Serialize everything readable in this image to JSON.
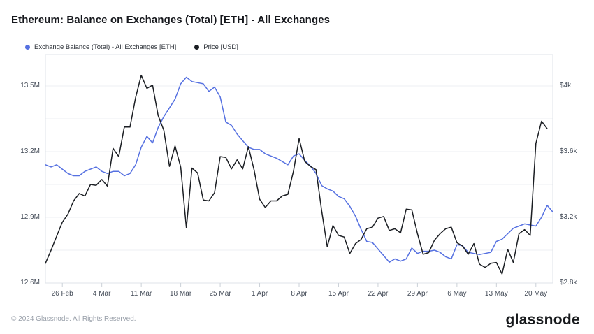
{
  "header": {
    "title": "Ethereum: Balance on Exchanges (Total) [ETH] - All Exchanges"
  },
  "legend": [
    {
      "label": "Exchange Balance (Total) - All Exchanges [ETH]",
      "color": "#5671E1"
    },
    {
      "label": "Price [USD]",
      "color": "#1B1E23"
    }
  ],
  "footer": {
    "copyright": "© 2024 Glassnode. All Rights Reserved.",
    "brand": "glassnode"
  },
  "chart_data": {
    "type": "line",
    "title": "Ethereum: Balance on Exchanges (Total) [ETH] - All Exchanges",
    "grid": true,
    "legend_position": "top-left",
    "x": [
      "23 Feb",
      "24 Feb",
      "25 Feb",
      "26 Feb",
      "27 Feb",
      "28 Feb",
      "29 Feb",
      "1 Mar",
      "2 Mar",
      "3 Mar",
      "4 Mar",
      "5 Mar",
      "6 Mar",
      "7 Mar",
      "8 Mar",
      "9 Mar",
      "10 Mar",
      "11 Mar",
      "12 Mar",
      "13 Mar",
      "14 Mar",
      "15 Mar",
      "16 Mar",
      "17 Mar",
      "18 Mar",
      "19 Mar",
      "20 Mar",
      "21 Mar",
      "22 Mar",
      "23 Mar",
      "24 Mar",
      "25 Mar",
      "26 Mar",
      "27 Mar",
      "28 Mar",
      "29 Mar",
      "30 Mar",
      "31 Mar",
      "1 Apr",
      "2 Apr",
      "3 Apr",
      "4 Apr",
      "5 Apr",
      "6 Apr",
      "7 Apr",
      "8 Apr",
      "9 Apr",
      "10 Apr",
      "11 Apr",
      "12 Apr",
      "13 Apr",
      "14 Apr",
      "15 Apr",
      "16 Apr",
      "17 Apr",
      "18 Apr",
      "19 Apr",
      "20 Apr",
      "21 Apr",
      "22 Apr",
      "23 Apr",
      "24 Apr",
      "25 Apr",
      "26 Apr",
      "27 Apr",
      "28 Apr",
      "29 Apr",
      "30 Apr",
      "1 May",
      "2 May",
      "3 May",
      "4 May",
      "5 May",
      "6 May",
      "7 May",
      "8 May",
      "9 May",
      "10 May",
      "11 May",
      "12 May",
      "13 May",
      "14 May",
      "15 May",
      "16 May",
      "17 May",
      "18 May",
      "19 May",
      "20 May",
      "21 May",
      "22 May",
      "23 May"
    ],
    "series": [
      {
        "name": "Exchange Balance (Total) - All Exchanges [ETH]",
        "axis": "left",
        "unit": "M ETH",
        "color": "#5671E1",
        "values": [
          13.14,
          13.13,
          13.14,
          13.12,
          13.1,
          13.09,
          13.09,
          13.11,
          13.12,
          13.13,
          13.11,
          13.1,
          13.11,
          13.11,
          13.09,
          13.1,
          13.14,
          13.22,
          13.27,
          13.24,
          13.31,
          13.36,
          13.4,
          13.44,
          13.51,
          13.54,
          13.52,
          13.515,
          13.51,
          13.475,
          13.495,
          13.45,
          13.335,
          13.32,
          13.28,
          13.25,
          13.22,
          13.21,
          13.21,
          13.19,
          13.18,
          13.17,
          13.155,
          13.14,
          13.18,
          13.19,
          13.16,
          13.135,
          13.1,
          13.045,
          13.03,
          13.02,
          12.995,
          12.985,
          12.95,
          12.905,
          12.845,
          12.79,
          12.785,
          12.755,
          12.725,
          12.695,
          12.71,
          12.7,
          12.71,
          12.76,
          12.735,
          12.745,
          12.745,
          12.75,
          12.74,
          12.72,
          12.71,
          12.775,
          12.77,
          12.74,
          12.735,
          12.73,
          12.735,
          12.74,
          12.79,
          12.8,
          12.825,
          12.85,
          12.86,
          12.87,
          12.865,
          12.86,
          12.9,
          12.955,
          12.925
        ]
      },
      {
        "name": "Price [USD]",
        "axis": "right",
        "unit": "USD",
        "color": "#1B1E23",
        "values": [
          2920,
          3000,
          3085,
          3170,
          3220,
          3300,
          3345,
          3330,
          3400,
          3395,
          3430,
          3390,
          3620,
          3570,
          3750,
          3750,
          3930,
          4065,
          3985,
          4005,
          3820,
          3730,
          3510,
          3635,
          3505,
          3135,
          3500,
          3470,
          3305,
          3300,
          3350,
          3570,
          3565,
          3495,
          3550,
          3495,
          3630,
          3490,
          3310,
          3260,
          3300,
          3300,
          3330,
          3340,
          3480,
          3680,
          3540,
          3510,
          3490,
          3240,
          3020,
          3150,
          3090,
          3080,
          2980,
          3040,
          3065,
          3130,
          3140,
          3195,
          3205,
          3120,
          3130,
          3105,
          3250,
          3245,
          3100,
          2975,
          2985,
          3060,
          3100,
          3130,
          3140,
          3045,
          3025,
          2975,
          3040,
          2915,
          2895,
          2920,
          2925,
          2855,
          3005,
          2925,
          3100,
          3125,
          3090,
          3650,
          3785,
          3740,
          null
        ]
      }
    ],
    "left_axis": {
      "labels": [
        "13.5M",
        "13.2M",
        "12.9M",
        "12.6M"
      ],
      "values": [
        13.5,
        13.2,
        12.9,
        12.6
      ],
      "range": [
        12.6,
        13.5
      ]
    },
    "right_axis": {
      "labels": [
        "$4k",
        "$3.6k",
        "$3.2k",
        "$2.8k"
      ],
      "values": [
        4000,
        3600,
        3200,
        2800
      ],
      "range": [
        2800,
        4000
      ]
    },
    "x_ticks": {
      "labels": [
        "26 Feb",
        "4 Mar",
        "11 Mar",
        "18 Mar",
        "25 Mar",
        "1 Apr",
        "8 Apr",
        "15 Apr",
        "22 Apr",
        "29 Apr",
        "6 May",
        "13 May",
        "20 May"
      ],
      "indices": [
        3,
        10,
        17,
        24,
        31,
        38,
        45,
        52,
        59,
        66,
        73,
        80,
        87
      ]
    }
  }
}
